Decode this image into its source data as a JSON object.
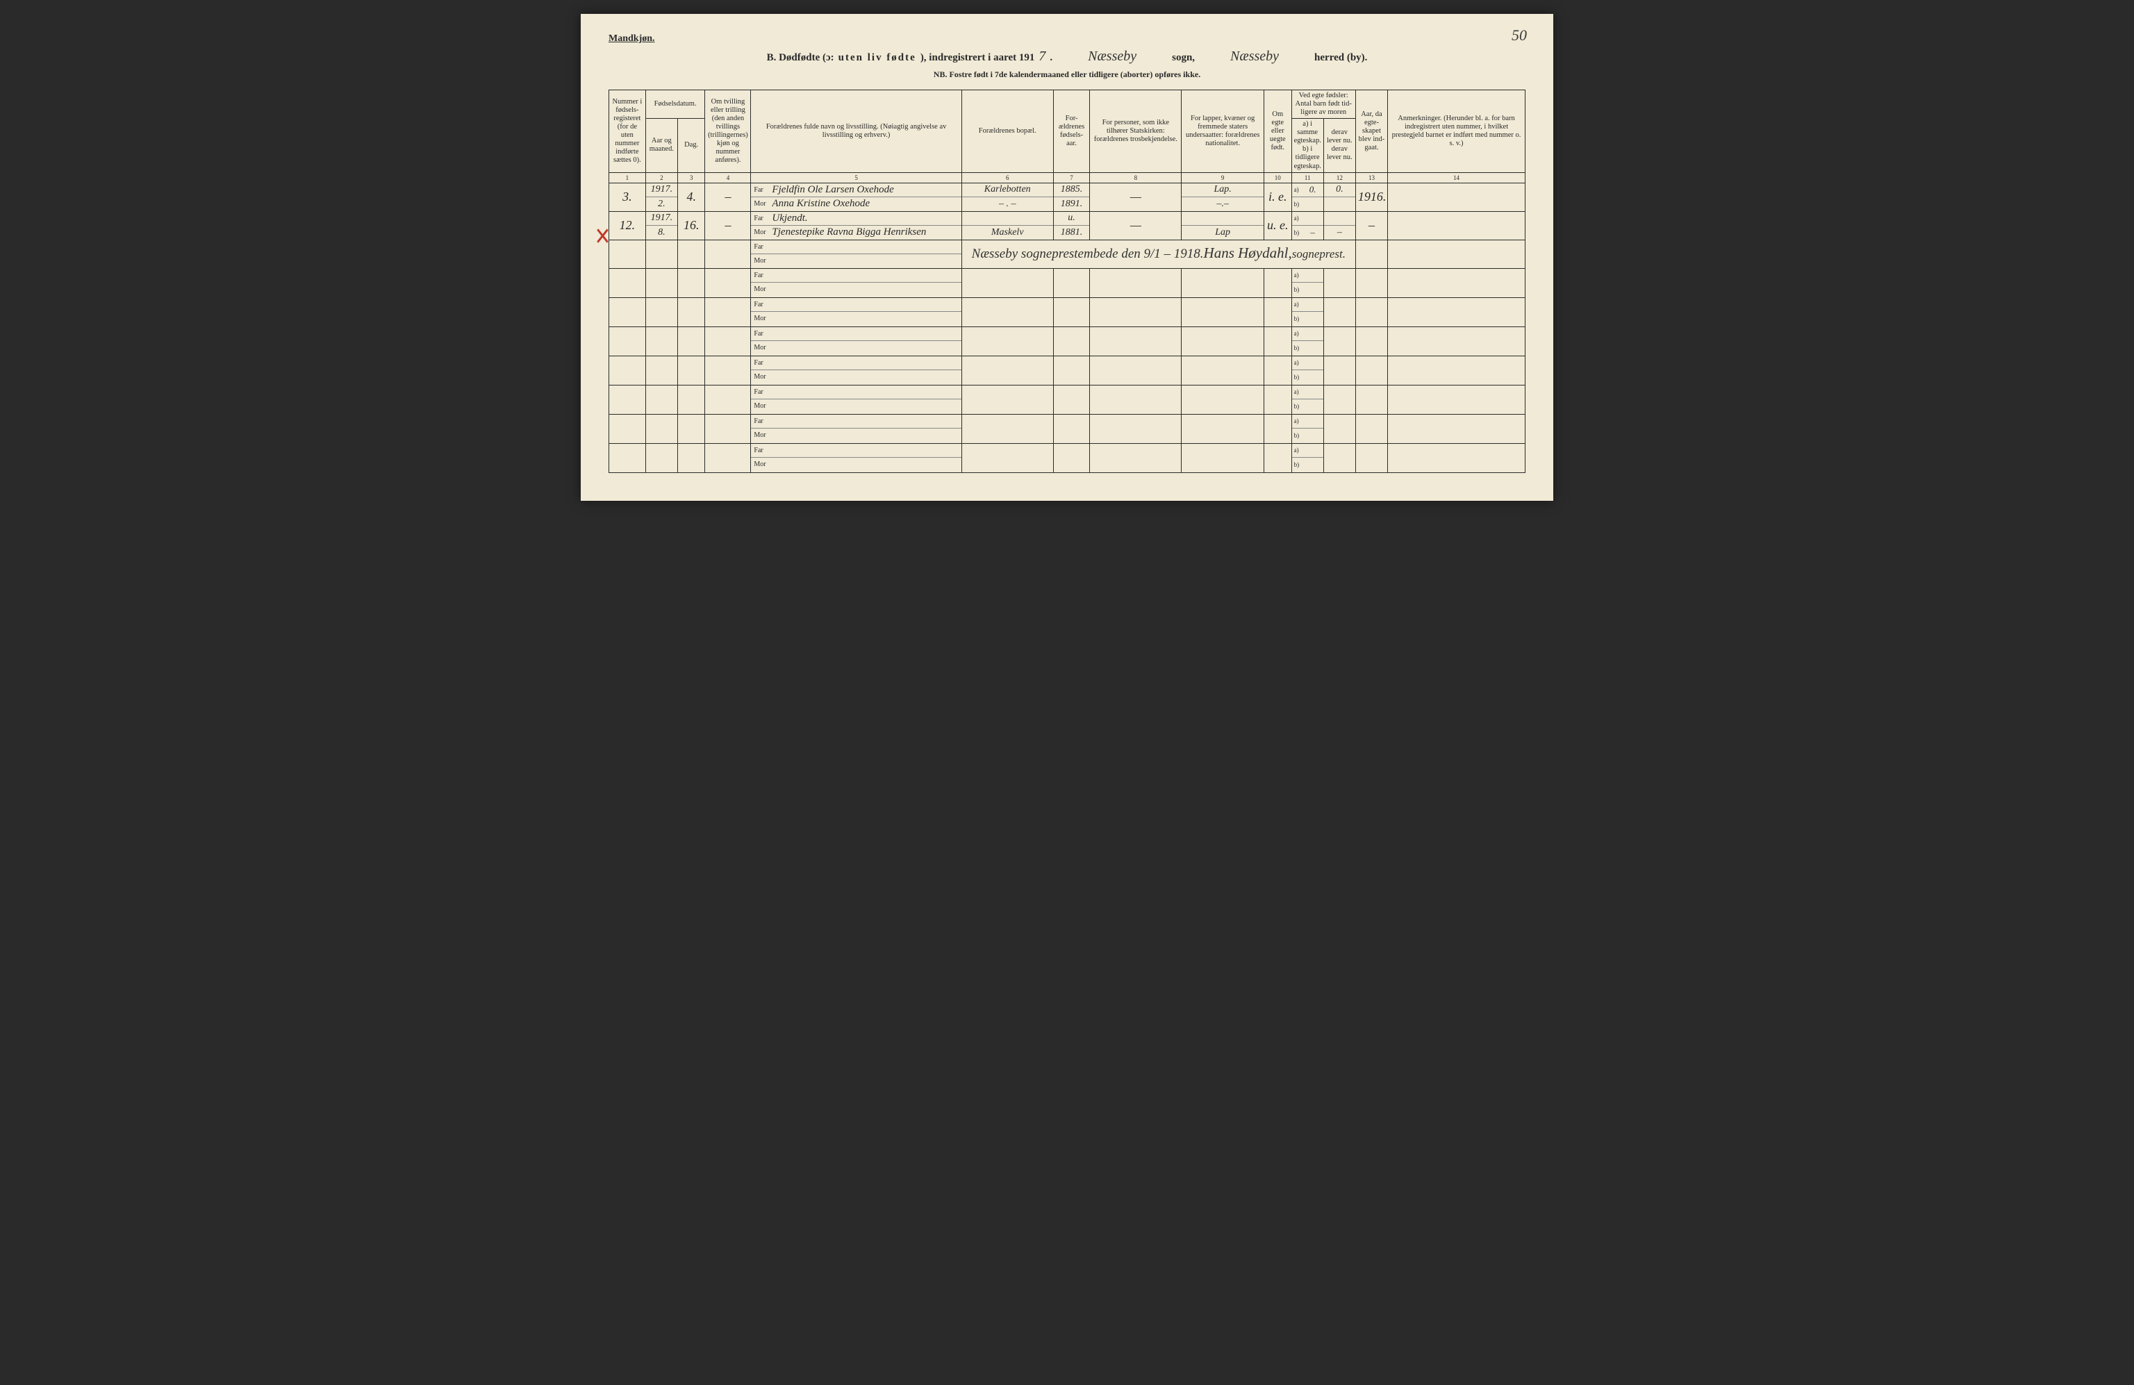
{
  "page_number": "50",
  "top_left_label": "Mandkjøn.",
  "title": {
    "prefix_bold": "B.  Dødfødte (ɔ:",
    "spaced_part": "uten liv fødte",
    "after_spaced": "), indregistrert i aaret 191",
    "year_suffix_hand": "7",
    "sogn_hand": "Næsseby",
    "sogn_label": "sogn,",
    "herred_hand": "Næsseby",
    "herred_label": "herred (by)."
  },
  "subheader": "NB.  Fostre født i 7de kalendermaaned eller tidligere (aborter) opføres ikke.",
  "columns": {
    "c1": "Nummer i fødsels-registeret (for de uten nummer ind​førte sættes 0).",
    "c2_group": "Fødselsdatum.",
    "c2a": "Aar og maaned.",
    "c2b": "Dag.",
    "c4": "Om tvilling eller trilling (den anden tvillings (trillingernes) kjøn og nummer anføres).",
    "c5": "Forældrenes fulde navn og livsstilling.\n(Nøiagtig angivelse av livsstilling og erhverv.)",
    "c6": "Forældrenes bopæl.",
    "c7": "For-ældrenes fødsels-aar.",
    "c8": "For personer, som ikke tilhører Statskirken:\nforældrenes trosbekjendelse.",
    "c9": "For lapper, kvæner og fremmede staters undersaatter:\nforældrenes nationalitet.",
    "c10": "Om egte eller uegte født.",
    "c11_group": "Ved egte fødsler:\nAntal barn født tid-ligere av moren",
    "c11a": "a) i samme egteskap.",
    "c11b": "b) i tidligere egteskap.",
    "c12a": "derav lever nu.",
    "c12b": "derav lever nu.",
    "c13": "Aar, da egte-skapet blev ind-gaat.",
    "c14": "Anmerkninger.\n(Herunder bl. a. for barn indregistrert uten nummer, i hvilket prestegjeld barnet er indført med nummer o. s. v.)"
  },
  "colnums": [
    "1",
    "2",
    "3",
    "4",
    "5",
    "6",
    "7",
    "8",
    "9",
    "10",
    "11",
    "12",
    "13",
    "14"
  ],
  "far_label": "Far",
  "mor_label": "Mor",
  "ab_a": "a)",
  "ab_b": "b)",
  "rows": [
    {
      "num": "3.",
      "aar_mnd": "1917.\n2.",
      "dag": "4.",
      "tvil": "–",
      "far": "Fjeldfin Ole Larsen Oxehode",
      "mor": "Anna Kristine Oxehode",
      "bopel_far": "Karlebotten",
      "bopel_mor": "– . –",
      "faar_far": "1885.",
      "faar_mor": "1891.",
      "tros": "—",
      "nat_far": "Lap.",
      "nat_mor": "–.–",
      "egte": "i. e.",
      "c11a": "0.",
      "c11b": "",
      "c12a": "0.",
      "c12b": "",
      "c13": "1916.",
      "anm": ""
    },
    {
      "num": "12.",
      "aar_mnd": "1917.\n8.",
      "dag": "16.",
      "tvil": "–",
      "far": "Ukjendt.",
      "mor": "Tjenestepike Ravna Bigga Henriksen",
      "bopel_far": "",
      "bopel_mor": "Maskelv",
      "faar_far": "u.",
      "faar_mor": "1881.",
      "tros": "—",
      "nat_far": "",
      "nat_mor": "Lap",
      "egte": "u. e.",
      "c11a": "",
      "c11b": "–",
      "c12a": "",
      "c12b": "–",
      "c13": "–",
      "anm": ""
    }
  ],
  "signature": {
    "line1": "Næsseby sogneprestembede den 9/1 – 1918.",
    "line2": "Hans Høydahl,",
    "line3": "sogneprest."
  },
  "empty_rows": 7,
  "colors": {
    "paper": "#f0ead6",
    "ink": "#2a2a2a",
    "red_mark": "#c0392b"
  }
}
